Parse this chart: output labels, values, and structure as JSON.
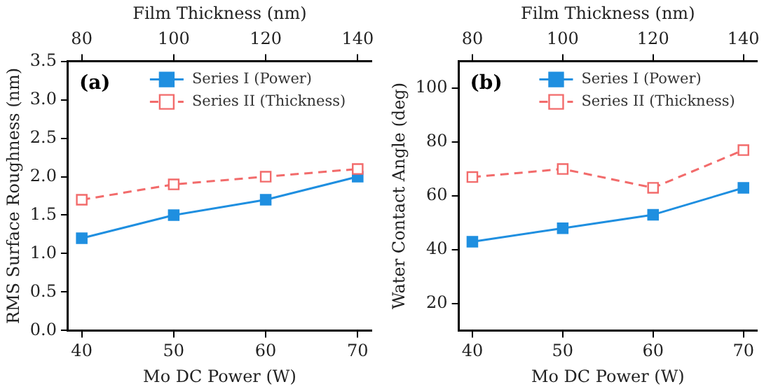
{
  "chart_data": [
    {
      "type": "line",
      "xlabel": "Mo DC Power (W)",
      "x2label": "Film Thickness (nm)",
      "ylabel": "RMS Surface Roughness (nm)",
      "x": [
        40,
        50,
        60,
        70
      ],
      "xlim": [
        38.5,
        71.5
      ],
      "xticks": [
        40,
        50,
        60,
        70
      ],
      "x2lim": [
        77,
        143
      ],
      "x2ticks": [
        80,
        100,
        120,
        140
      ],
      "ylim": [
        0,
        3.5
      ],
      "yticks": [
        {
          "value": 0,
          "label": "0.0"
        },
        0.5,
        {
          "value": 1,
          "label": "1.0"
        },
        1.5,
        {
          "value": 2,
          "label": "2.0"
        },
        2.5,
        {
          "value": 3,
          "label": "3.0"
        },
        3.5
      ],
      "grid": false,
      "legend": "top right",
      "marker": "square",
      "annotations": [
        "(a)"
      ],
      "series": [
        {
          "name": "Series I (Power)",
          "color": "#1f8fe0",
          "values": [
            1.2,
            1.5,
            1.7,
            2.0
          ],
          "line_style": "solid"
        },
        {
          "name": "Series II (Thickness)",
          "color": "#f26b6b",
          "x": [
            80,
            100,
            120,
            140
          ],
          "axis": "x2",
          "values": [
            1.7,
            1.9,
            2.0,
            2.1
          ],
          "line_style": "dashed"
        }
      ]
    },
    {
      "type": "line",
      "xlabel": "Mo DC Power (W)",
      "x2label": "Film Thickness (nm)",
      "ylabel": "Water Contact Angle (deg)",
      "x": [
        40,
        50,
        60,
        70
      ],
      "xlim": [
        38.5,
        71.5
      ],
      "xticks": [
        40,
        50,
        60,
        70
      ],
      "x2lim": [
        77,
        143
      ],
      "x2ticks": [
        80,
        100,
        120,
        140
      ],
      "ylim": [
        10,
        110
      ],
      "yticks": [
        20,
        40,
        60,
        80,
        100
      ],
      "grid": false,
      "legend": "top right",
      "marker": "square",
      "annotations": [
        "(b)"
      ],
      "series": [
        {
          "name": "Series I (Power)",
          "color": "#1f8fe0",
          "values": [
            43,
            48,
            53,
            63
          ],
          "line_style": "solid"
        },
        {
          "name": "Series II (Thickness)",
          "color": "#f26b6b",
          "x": [
            80,
            100,
            120,
            140
          ],
          "axis": "x2",
          "values": [
            67,
            70,
            63,
            77
          ],
          "line_style": "dashed"
        }
      ]
    }
  ]
}
